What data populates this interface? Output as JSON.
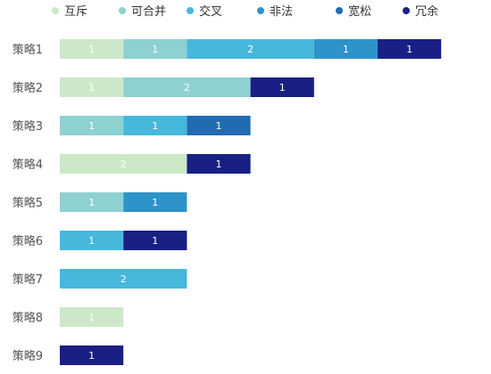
{
  "chart_data": {
    "type": "bar",
    "orientation": "horizontal",
    "stacked": true,
    "categories": [
      "策略1",
      "策略2",
      "策略3",
      "策略4",
      "策略5",
      "策略6",
      "策略7",
      "策略8",
      "策略9"
    ],
    "series": [
      {
        "name": "互斥",
        "color": "#cce8c9",
        "values": [
          1,
          1,
          0,
          2,
          0,
          0,
          0,
          1,
          0
        ]
      },
      {
        "name": "可合并",
        "color": "#8dd1d0",
        "values": [
          1,
          2,
          1,
          0,
          1,
          0,
          0,
          0,
          0
        ]
      },
      {
        "name": "交叉",
        "color": "#46b8dc",
        "values": [
          2,
          0,
          1,
          0,
          0,
          1,
          2,
          0,
          0
        ]
      },
      {
        "name": "非法",
        "color": "#2e93c9",
        "values": [
          1,
          0,
          0,
          0,
          1,
          0,
          0,
          0,
          0
        ]
      },
      {
        "name": "宽松",
        "color": "#236bb0",
        "values": [
          0,
          0,
          1,
          0,
          0,
          0,
          0,
          0,
          0
        ]
      },
      {
        "name": "冗余",
        "color": "#1a1f85",
        "values": [
          1,
          1,
          0,
          1,
          0,
          1,
          0,
          0,
          1
        ]
      }
    ],
    "xlim": [
      0,
      6.2
    ],
    "grid": false,
    "legend_position": "top",
    "data_labels": true
  }
}
